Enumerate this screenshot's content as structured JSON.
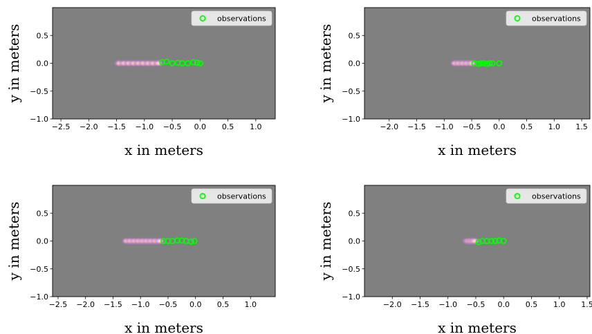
{
  "figure": {
    "background": "#ffffff",
    "panel_background": "#808080"
  },
  "chart_data": [
    {
      "type": "scatter",
      "xlabel": "x in meters",
      "ylabel": "y in meters",
      "xlim": [
        -2.65,
        1.35
      ],
      "ylim": [
        -1.0,
        1.0
      ],
      "xticks": [
        -2.5,
        -2.0,
        -1.5,
        -1.0,
        -0.5,
        0.0,
        0.5,
        1.0
      ],
      "yticks": [
        -1.0,
        -0.5,
        0.0,
        0.5
      ],
      "legend": {
        "placement": "top-right",
        "entries": [
          "observations"
        ]
      },
      "observation_color": "#00ff00",
      "observations": [
        {
          "x": -0.68,
          "y": 0.02
        },
        {
          "x": -0.6,
          "y": 0.03
        },
        {
          "x": -0.5,
          "y": 0.0
        },
        {
          "x": -0.4,
          "y": 0.01
        },
        {
          "x": -0.32,
          "y": 0.0
        },
        {
          "x": -0.22,
          "y": 0.0
        },
        {
          "x": -0.12,
          "y": 0.02
        },
        {
          "x": -0.05,
          "y": 0.01
        },
        {
          "x": 0.0,
          "y": 0.0
        }
      ],
      "prediction_density": {
        "x_from": -1.45,
        "x_to": -0.75,
        "y": 0.0,
        "count": 9
      }
    },
    {
      "type": "scatter",
      "xlabel": "x in meters",
      "ylabel": "y in meters",
      "xlim": [
        -2.45,
        1.65
      ],
      "ylim": [
        -1.0,
        1.0
      ],
      "xticks": [
        -2.0,
        -1.5,
        -1.0,
        -0.5,
        0.0,
        0.5,
        1.0,
        1.5
      ],
      "yticks": [
        -1.0,
        -0.5,
        0.0,
        0.5
      ],
      "legend": {
        "placement": "top-right",
        "entries": [
          "observations"
        ]
      },
      "observation_color": "#00ff00",
      "observations": [
        {
          "x": -0.45,
          "y": 0.0
        },
        {
          "x": -0.38,
          "y": -0.01
        },
        {
          "x": -0.33,
          "y": 0.0
        },
        {
          "x": -0.28,
          "y": 0.0
        },
        {
          "x": -0.22,
          "y": -0.01
        },
        {
          "x": -0.17,
          "y": 0.0
        },
        {
          "x": -0.12,
          "y": 0.0
        },
        {
          "x": 0.0,
          "y": 0.0
        }
      ],
      "prediction_density": {
        "x_from": -0.8,
        "x_to": -0.5,
        "y": 0.0,
        "count": 5
      }
    },
    {
      "type": "scatter",
      "xlabel": "x in meters",
      "ylabel": "y in meters",
      "xlim": [
        -2.6,
        1.45
      ],
      "ylim": [
        -1.0,
        1.0
      ],
      "xticks": [
        -2.5,
        -2.0,
        -1.5,
        -1.0,
        -0.5,
        0.0,
        0.5,
        1.0
      ],
      "yticks": [
        -1.0,
        -0.5,
        0.0,
        0.5
      ],
      "legend": {
        "placement": "top-right",
        "entries": [
          "observations"
        ]
      },
      "observation_color": "#00ff00",
      "observations": [
        {
          "x": -0.58,
          "y": 0.0
        },
        {
          "x": -0.5,
          "y": 0.0
        },
        {
          "x": -0.42,
          "y": 0.0
        },
        {
          "x": -0.33,
          "y": 0.01
        },
        {
          "x": -0.25,
          "y": 0.01
        },
        {
          "x": -0.17,
          "y": 0.0
        },
        {
          "x": -0.08,
          "y": -0.01
        },
        {
          "x": -0.02,
          "y": 0.0
        }
      ],
      "prediction_density": {
        "x_from": -1.25,
        "x_to": -0.65,
        "y": 0.0,
        "count": 9
      }
    },
    {
      "type": "scatter",
      "xlabel": "x in meters",
      "ylabel": "y in meters",
      "xlim": [
        -2.5,
        1.55
      ],
      "ylim": [
        -1.0,
        1.0
      ],
      "xticks": [
        -2.0,
        -1.5,
        -1.0,
        -0.5,
        0.0,
        0.5,
        1.0,
        1.5
      ],
      "yticks": [
        -1.0,
        -0.5,
        0.0,
        0.5
      ],
      "legend": {
        "placement": "top-right",
        "entries": [
          "observations"
        ]
      },
      "observation_color": "#00ff00",
      "observations": [
        {
          "x": -0.45,
          "y": -0.02
        },
        {
          "x": -0.38,
          "y": 0.0
        },
        {
          "x": -0.3,
          "y": 0.0
        },
        {
          "x": -0.22,
          "y": 0.0
        },
        {
          "x": -0.15,
          "y": 0.0
        },
        {
          "x": -0.08,
          "y": 0.01
        },
        {
          "x": 0.0,
          "y": 0.0
        }
      ],
      "prediction_density": {
        "x_from": -0.65,
        "x_to": -0.52,
        "y": 0.0,
        "count": 4
      }
    }
  ]
}
